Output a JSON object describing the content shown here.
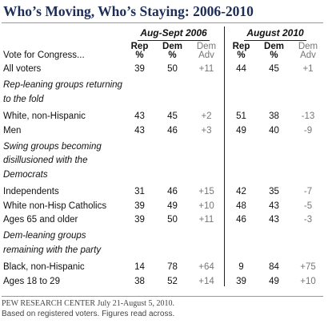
{
  "title": "Who’s Moving, Who’s Staying: 2006-2010",
  "row_header": "Vote for Congress...",
  "groups": [
    {
      "label": "Aug-Sept 2006",
      "columns": [
        {
          "name": "Rep",
          "unit": "%"
        },
        {
          "name": "Dem",
          "unit": "%"
        },
        {
          "name": "Dem",
          "unit": "Adv"
        }
      ]
    },
    {
      "label": "August 2010",
      "columns": [
        {
          "name": "Rep",
          "unit": "%"
        },
        {
          "name": "Dem",
          "unit": "%"
        },
        {
          "name": "Dem",
          "unit": "Adv"
        }
      ]
    }
  ],
  "sections": [
    {
      "rows": [
        {
          "label": "All voters",
          "values": [
            "39",
            "50",
            "+11",
            "44",
            "45",
            "+1"
          ]
        }
      ]
    },
    {
      "heading": "Rep-leaning groups returning to the fold",
      "rows": [
        {
          "label": "White, non-Hispanic",
          "values": [
            "43",
            "45",
            "+2",
            "51",
            "38",
            "-13"
          ]
        },
        {
          "label": "Men",
          "values": [
            "43",
            "46",
            "+3",
            "49",
            "40",
            "-9"
          ]
        }
      ]
    },
    {
      "heading": "Swing groups becoming disillusioned with the Democrats",
      "rows": [
        {
          "label": "Independents",
          "values": [
            "31",
            "46",
            "+15",
            "42",
            "35",
            "-7"
          ]
        },
        {
          "label": "White non-Hisp Catholics",
          "values": [
            "39",
            "49",
            "+10",
            "48",
            "43",
            "-5"
          ]
        },
        {
          "label": "Ages 65 and older",
          "values": [
            "39",
            "50",
            "+11",
            "46",
            "43",
            "-3"
          ]
        }
      ]
    },
    {
      "heading": "Dem-leaning groups remaining with the party",
      "rows": [
        {
          "label": "Black, non-Hispanic",
          "values": [
            "14",
            "78",
            "+64",
            "9",
            "84",
            "+75"
          ]
        },
        {
          "label": "Ages 18 to 29",
          "values": [
            "38",
            "52",
            "+14",
            "39",
            "49",
            "+10"
          ]
        }
      ]
    }
  ],
  "footer": {
    "source": "PEW RESEARCH CENTER July 21-August 5, 2010.",
    "note": "Based on registered voters. Figures read across."
  }
}
